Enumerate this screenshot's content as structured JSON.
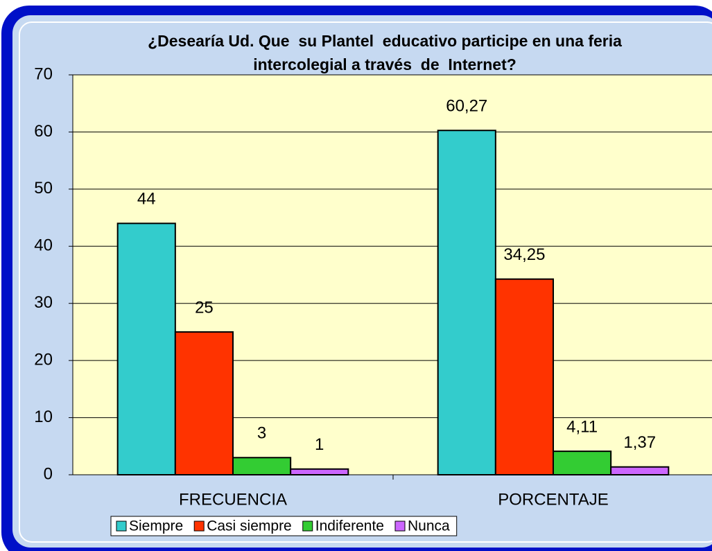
{
  "chart_data": {
    "type": "bar",
    "title": "¿Desearía Ud. Que  su Plantel  educativo participe en una feria intercolegial a través  de  Internet?",
    "categories": [
      "FRECUENCIA",
      "PORCENTAJE"
    ],
    "series": [
      {
        "name": "Siempre",
        "color": "#33cccc",
        "values": [
          44,
          60.27
        ],
        "value_labels": [
          "44",
          "60,27"
        ]
      },
      {
        "name": "Casi siempre",
        "color": "#ff3300",
        "values": [
          25,
          34.25
        ],
        "value_labels": [
          "25",
          "34,25"
        ]
      },
      {
        "name": "Indiferente",
        "color": "#33cc33",
        "values": [
          3,
          4.11
        ],
        "value_labels": [
          "3",
          "4,11"
        ]
      },
      {
        "name": "Nunca",
        "color": "#cc66ff",
        "values": [
          1,
          1.37
        ],
        "value_labels": [
          "1",
          "1,37"
        ]
      }
    ],
    "ylim": [
      0,
      70
    ],
    "yticks": [
      0,
      10,
      20,
      30,
      40,
      50,
      60,
      70
    ],
    "grid": true,
    "legend": "bottom"
  }
}
